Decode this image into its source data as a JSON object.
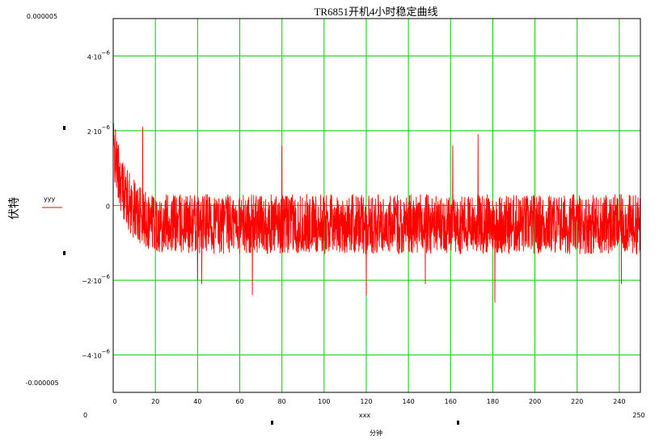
{
  "chart_data": {
    "type": "line",
    "title": "TR6851开机4小时稳定曲线",
    "xlabel": "分钟",
    "x_variable": "xxx",
    "ylabel": "伏特",
    "xlim": [
      0,
      250
    ],
    "ylim": [
      -5e-06,
      5e-06
    ],
    "grid": true,
    "legend_position": "left",
    "x_ticks": [
      "0",
      "20",
      "40",
      "60",
      "80",
      "100",
      "120",
      "140",
      "160",
      "180",
      "200",
      "220",
      "240"
    ],
    "x_range_labels": {
      "min": "0",
      "max": "250"
    },
    "y_range_labels": {
      "max": "0.000005",
      "min": "-0.000005"
    },
    "y_ticks": [
      {
        "value": 4e-06,
        "mantissa": "4·10",
        "exponent": "−6"
      },
      {
        "value": 2e-06,
        "mantissa": "2·10",
        "exponent": "−6"
      },
      {
        "value": 0,
        "mantissa": "0",
        "exponent": ""
      },
      {
        "value": -2e-06,
        "mantissa": "−2·10",
        "exponent": "−6"
      },
      {
        "value": -4e-06,
        "mantissa": "−4·10",
        "exponent": "−6"
      }
    ],
    "series": [
      {
        "name": "yyy",
        "color": "#ff0000",
        "noise_trend": {
          "start_value": 1.6e-06,
          "settled_value": -5e-07,
          "time_constant_min": 6,
          "noise_amplitude": 8e-07,
          "points_per_minute": 10
        },
        "spikes": [
          {
            "x": 40,
            "y": -2e-06
          },
          {
            "x": 42,
            "y": -2.1e-06
          },
          {
            "x": 66,
            "y": -2.4e-06
          },
          {
            "x": 120,
            "y": -2.4e-06
          },
          {
            "x": 148,
            "y": -2.1e-06
          },
          {
            "x": 181,
            "y": -2.6e-06
          },
          {
            "x": 241,
            "y": -2.1e-06
          },
          {
            "x": 161,
            "y": 1.6e-06
          },
          {
            "x": 173,
            "y": 1.9e-06
          },
          {
            "x": 80,
            "y": 1.6e-06
          },
          {
            "x": 14,
            "y": 2.1e-06
          }
        ]
      }
    ]
  },
  "colors": {
    "grid": "#00cc00",
    "series": "#ff0000",
    "secondary_trace": "#c08000"
  }
}
